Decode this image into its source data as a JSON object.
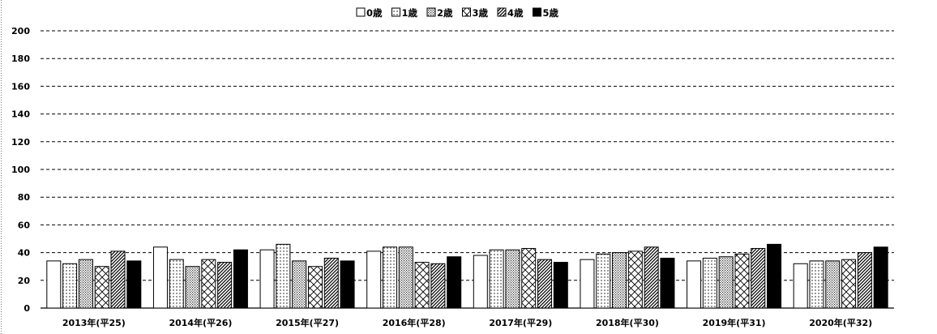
{
  "chart_data": {
    "type": "bar",
    "categories": [
      "2013年(平25)",
      "2014年(平26)",
      "2015年(平27)",
      "2016年(平28)",
      "2017年(平29)",
      "2018年(平30)",
      "2019年(平31)",
      "2020年(平32)"
    ],
    "series": [
      {
        "name": "0歳",
        "values": [
          34,
          44,
          42,
          41,
          38,
          35,
          34,
          32
        ]
      },
      {
        "name": "1歳",
        "values": [
          32,
          35,
          46,
          44,
          42,
          39,
          36,
          34
        ]
      },
      {
        "name": "2歳",
        "values": [
          35,
          30,
          34,
          44,
          42,
          40,
          37,
          34
        ]
      },
      {
        "name": "3歳",
        "values": [
          30,
          35,
          30,
          33,
          43,
          41,
          39,
          35
        ]
      },
      {
        "name": "4歳",
        "values": [
          41,
          33,
          36,
          32,
          35,
          44,
          43,
          40
        ]
      },
      {
        "name": "5歳",
        "values": [
          34,
          42,
          34,
          37,
          33,
          36,
          46,
          44
        ]
      }
    ],
    "ylim": [
      0,
      200
    ],
    "yticks": [
      0,
      20,
      40,
      60,
      80,
      100,
      120,
      140,
      160,
      180,
      200
    ],
    "grid": true,
    "legend_position": "top-center",
    "patterns": [
      "empty",
      "dots",
      "dense-dots",
      "crosshatch",
      "diagonal",
      "solid"
    ]
  }
}
